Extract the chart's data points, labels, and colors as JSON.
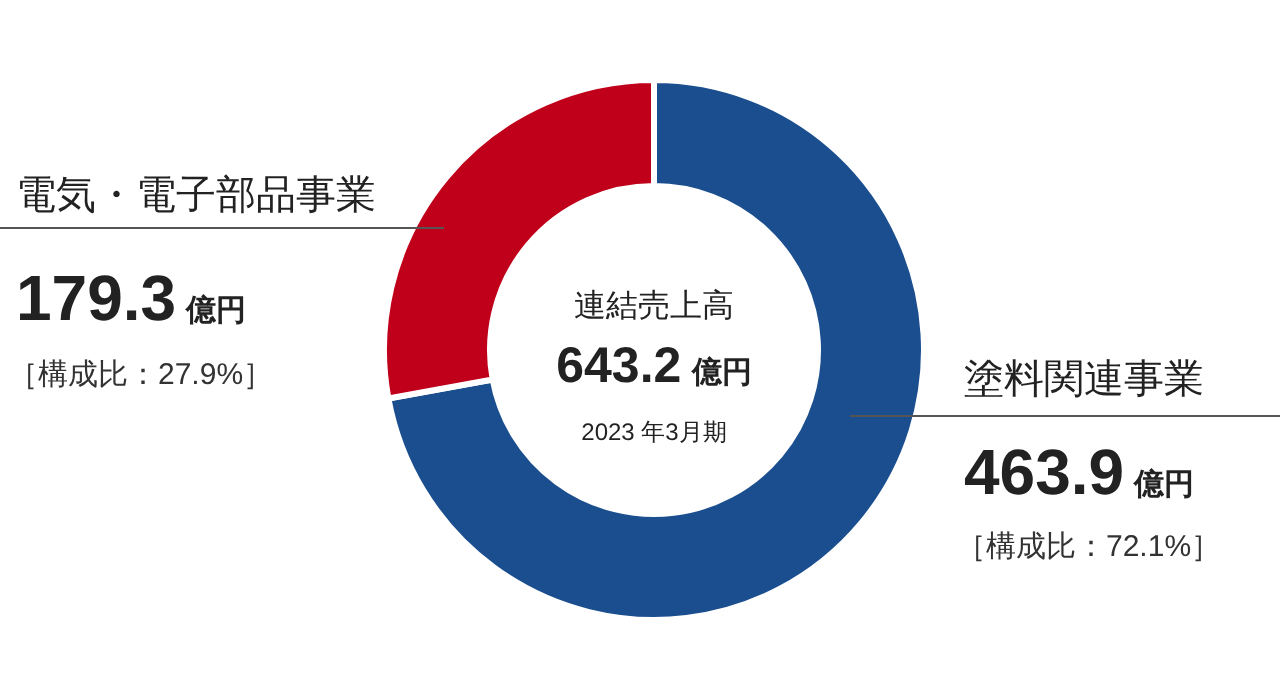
{
  "chart_data": {
    "type": "donut",
    "title": "連結売上高",
    "subtitle": "2023 年3月期",
    "categories": [
      "塗料関連事業",
      "電気・電子部品事業"
    ],
    "values": [
      463.9,
      179.3
    ],
    "colors": [
      "#1a4e8f",
      "#c0001a"
    ],
    "value_labels": [
      "463.9 億円",
      "179.3 億円"
    ],
    "annotations": [
      "643.2 億円",
      "［構成比：72.1%］",
      "［構成比：27.9%］"
    ]
  }
}
